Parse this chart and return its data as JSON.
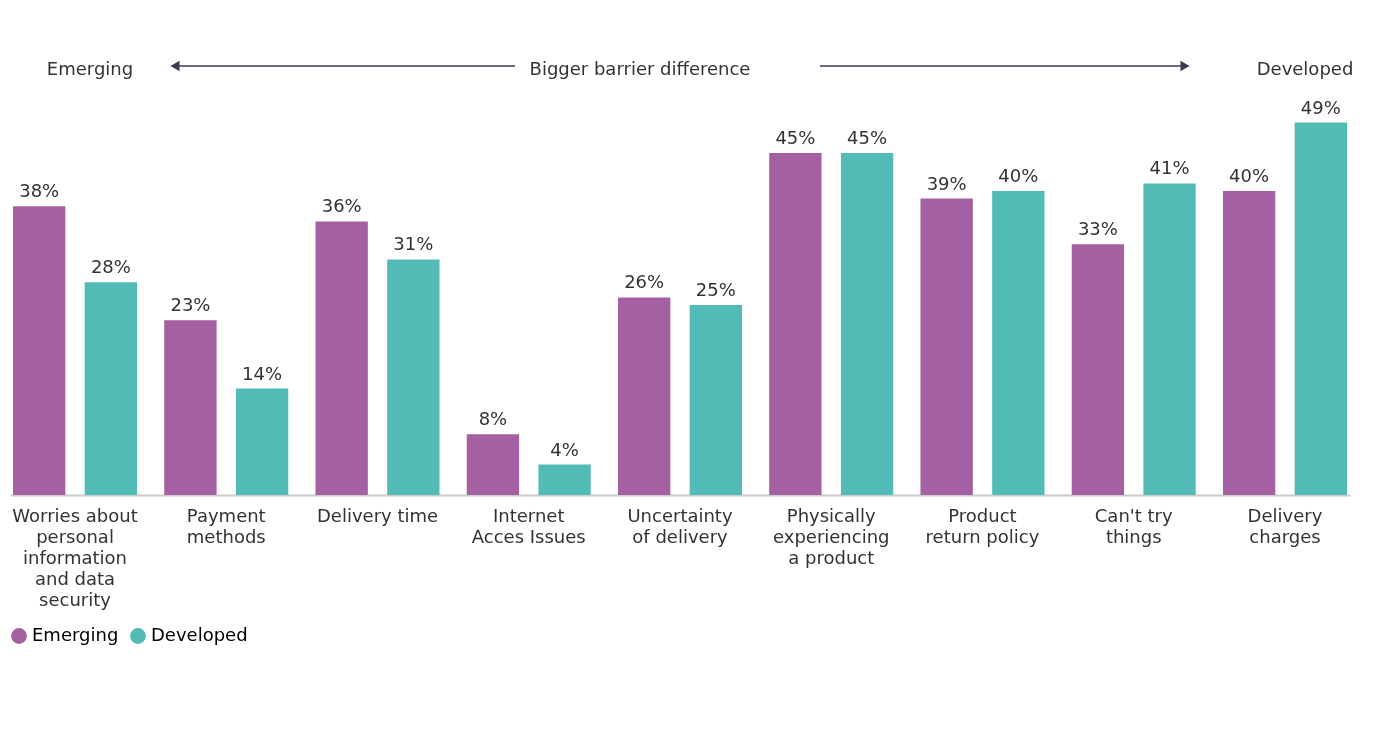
{
  "chart_data": {
    "type": "bar",
    "categories": [
      "Worries about personal information and data security",
      "Payment methods",
      "Delivery time",
      "Internet Acces Issues",
      "Uncertainty of delivery",
      "Physically experiencing a product",
      "Product return policy",
      "Can't try things",
      "Delivery charges"
    ],
    "series": [
      {
        "name": "Emerging",
        "color": "#a55fa3",
        "values": [
          38,
          23,
          36,
          8,
          26,
          45,
          39,
          33,
          40
        ],
        "value_labels": [
          "38%",
          "23%",
          "36%",
          "8%",
          "26%",
          "45%",
          "39%",
          "33%",
          "40%"
        ]
      },
      {
        "name": "Developed",
        "color": "#52bbb6",
        "values": [
          28,
          14,
          31,
          4,
          25,
          45,
          40,
          41,
          49
        ],
        "value_labels": [
          "28%",
          "14%",
          "31%",
          "4%",
          "25%",
          "45%",
          "40%",
          "41%",
          "49%"
        ]
      }
    ],
    "annotations": [
      "Emerging",
      "Bigger barrier difference",
      "Developed"
    ],
    "legend": "bottom",
    "grid": false
  }
}
